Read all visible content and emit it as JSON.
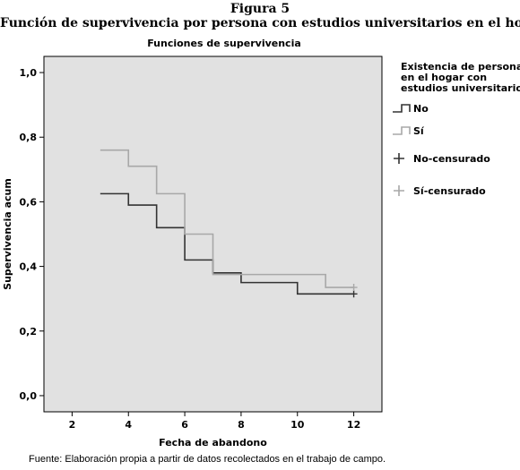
{
  "figure": {
    "label": "Figura 5",
    "title": "Función de supervivencia por persona con estudios universitarios en el hogar",
    "source": "Fuente: Elaboración propia a partir de datos recolectados en el trabajo de campo."
  },
  "chart_data": {
    "type": "line",
    "title": "Funciones de supervivencia",
    "xlabel": "Fecha de abandono",
    "ylabel": "Supervivencia acum",
    "xlim": [
      1,
      13
    ],
    "ylim": [
      -0.05,
      1.05
    ],
    "xticks": [
      2,
      4,
      6,
      8,
      10,
      12
    ],
    "xtick_labels": [
      "2",
      "4",
      "6",
      "8",
      "10",
      "12"
    ],
    "yticks": [
      0.0,
      0.2,
      0.4,
      0.6,
      0.8,
      1.0
    ],
    "ytick_labels": [
      "0,0",
      "0,2",
      "0,4",
      "0,6",
      "0,8",
      "1,0"
    ],
    "grid": false,
    "legend_placement": "right",
    "legend_title": [
      "Existencia de personas",
      "en el hogar con",
      "estudios universitarios"
    ],
    "series": [
      {
        "name": "No",
        "style": "step",
        "color": "#333333",
        "x": [
          3,
          4,
          5,
          6,
          7,
          8,
          10,
          12
        ],
        "y": [
          0.625,
          0.59,
          0.52,
          0.42,
          0.38,
          0.35,
          0.315,
          0.315
        ]
      },
      {
        "name": "Sí",
        "style": "step",
        "color": "#a8a8a8",
        "x": [
          3,
          4,
          5,
          6,
          7,
          8,
          11,
          12
        ],
        "y": [
          0.76,
          0.71,
          0.625,
          0.5,
          0.375,
          0.375,
          0.335,
          0.335
        ]
      },
      {
        "name": "No-censurado",
        "style": "marker",
        "color": "#333333",
        "x": [
          12
        ],
        "y": [
          0.315
        ]
      },
      {
        "name": "Sí-censurado",
        "style": "marker",
        "color": "#a8a8a8",
        "x": [
          12
        ],
        "y": [
          0.335
        ]
      }
    ],
    "colors": {
      "plot_background": "#e1e1e1",
      "no": "#333333",
      "si": "#a8a8a8"
    }
  }
}
